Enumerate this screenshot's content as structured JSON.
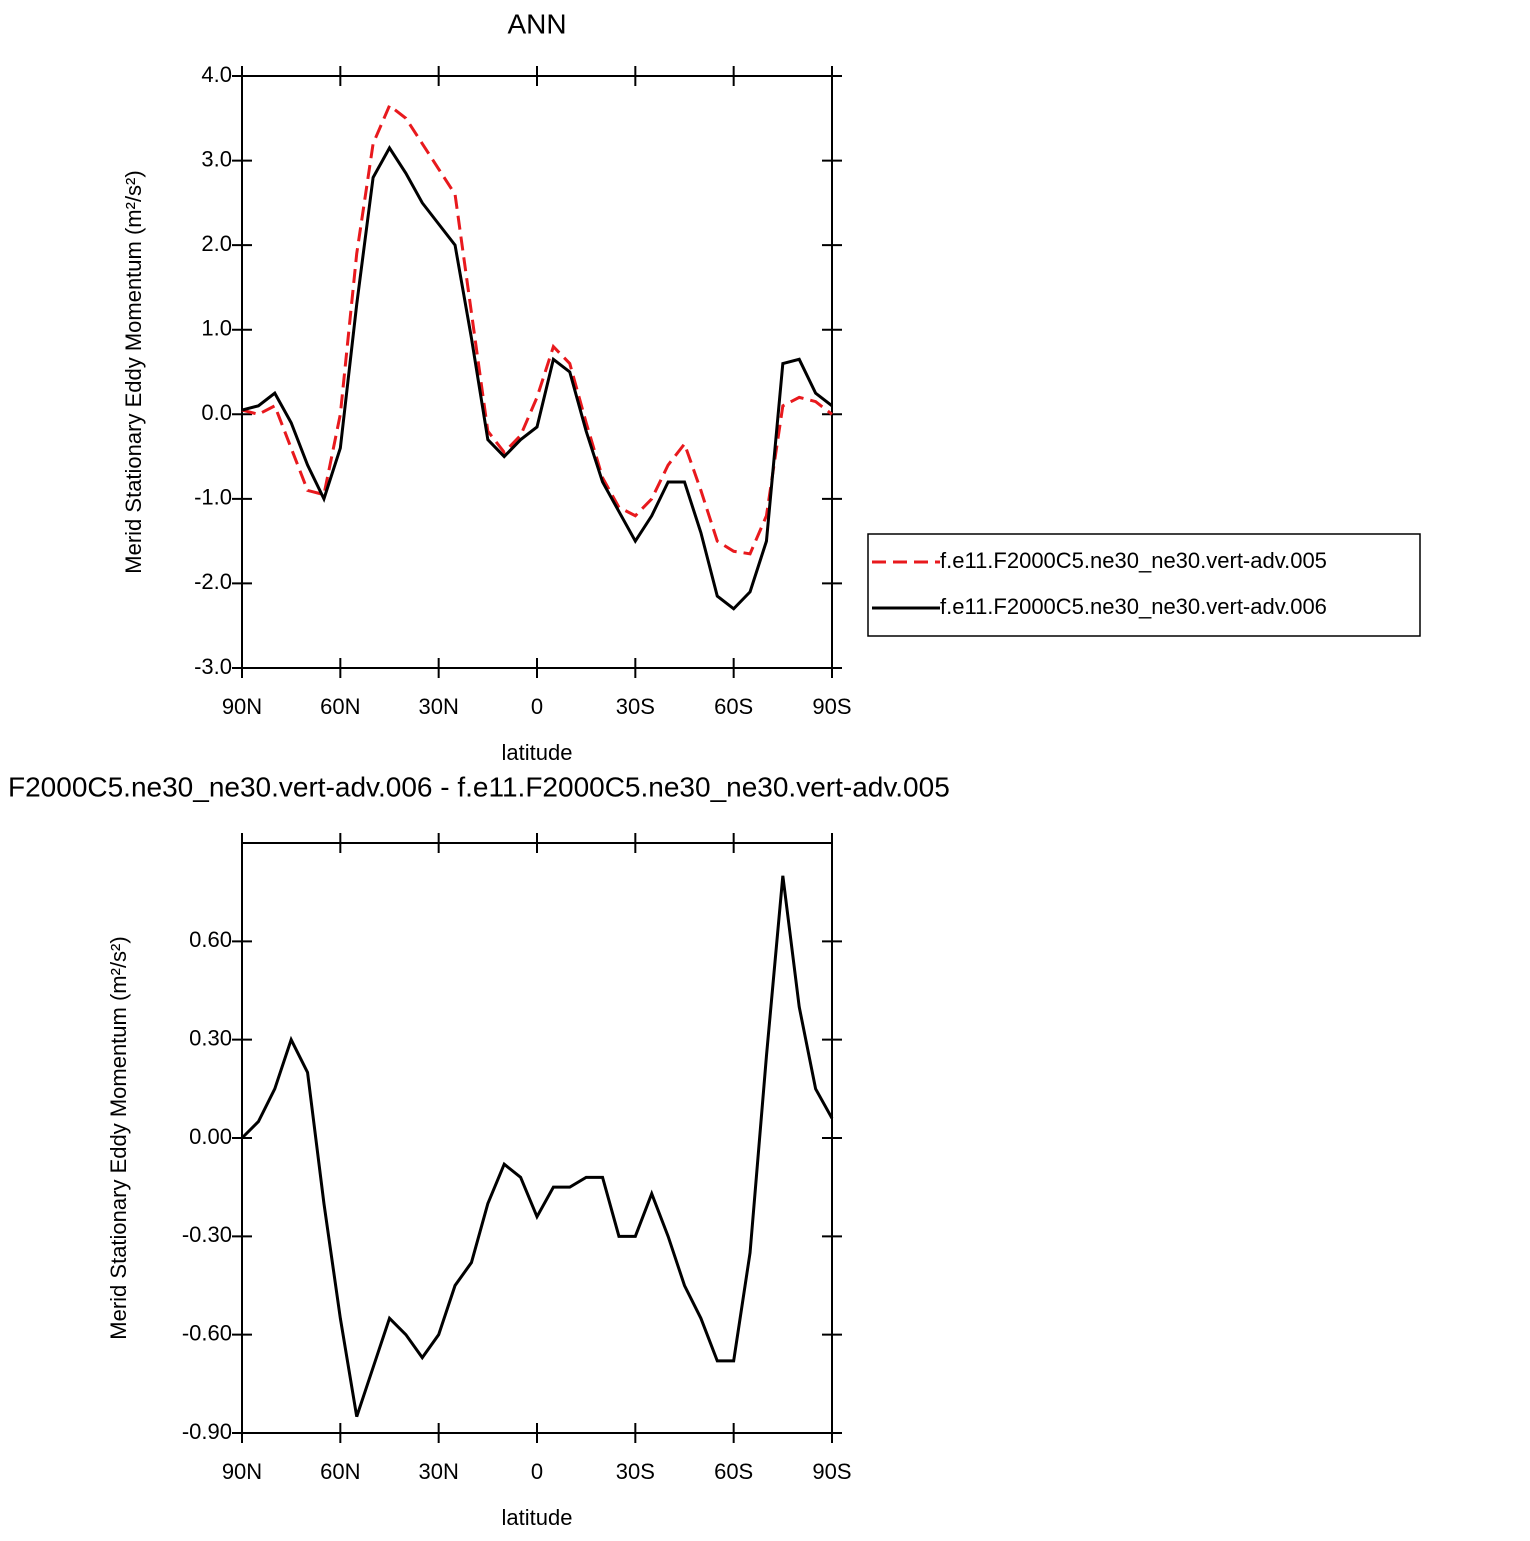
{
  "chart_data": [
    {
      "type": "line",
      "title": "ANN",
      "xlabel": "latitude",
      "ylabel": "Merid Stationary Eddy Momentum (m²/s²)",
      "x": [
        90,
        85,
        80,
        75,
        70,
        65,
        60,
        55,
        50,
        45,
        40,
        35,
        30,
        25,
        20,
        15,
        10,
        5,
        0,
        -5,
        -10,
        -15,
        -20,
        -25,
        -30,
        -35,
        -40,
        -45,
        -50,
        -55,
        -60,
        -65,
        -70,
        -75,
        -80,
        -85,
        -90
      ],
      "series": [
        {
          "name": "f.e11.F2000C5.ne30_ne30.vert-adv.005",
          "color": "#e8191d",
          "style": "dashed",
          "values": [
            0.05,
            0.0,
            0.1,
            -0.4,
            -0.9,
            -0.95,
            0.0,
            1.9,
            3.2,
            3.65,
            3.5,
            3.2,
            2.9,
            2.6,
            1.2,
            -0.2,
            -0.45,
            -0.25,
            0.2,
            0.8,
            0.6,
            -0.1,
            -0.75,
            -1.1,
            -1.2,
            -1.0,
            -0.6,
            -0.35,
            -0.9,
            -1.5,
            -1.62,
            -1.65,
            -1.2,
            0.1,
            0.2,
            0.15,
            0.0
          ]
        },
        {
          "name": "f.e11.F2000C5.ne30_ne30.vert-adv.006",
          "color": "#000000",
          "style": "solid",
          "values": [
            0.05,
            0.1,
            0.25,
            -0.1,
            -0.6,
            -1.0,
            -0.4,
            1.3,
            2.8,
            3.15,
            2.85,
            2.5,
            2.25,
            2.0,
            0.9,
            -0.3,
            -0.5,
            -0.3,
            -0.15,
            0.65,
            0.5,
            -0.2,
            -0.8,
            -1.15,
            -1.5,
            -1.2,
            -0.8,
            -0.8,
            -1.4,
            -2.15,
            -2.3,
            -2.1,
            -1.5,
            0.6,
            0.65,
            0.25,
            0.1
          ]
        }
      ],
      "xlim": [
        90,
        -90
      ],
      "xticks": [
        {
          "value": 90,
          "label": "90N"
        },
        {
          "value": 60,
          "label": "60N"
        },
        {
          "value": 30,
          "label": "30N"
        },
        0,
        {
          "value": -30,
          "label": "30S"
        },
        {
          "value": -60,
          "label": "60S"
        },
        {
          "value": -90,
          "label": "90S"
        }
      ],
      "ylim": [
        -3,
        4
      ],
      "yticks": [
        {
          "value": -3,
          "label": "-3.0"
        },
        {
          "value": -2,
          "label": "-2.0"
        },
        {
          "value": -1,
          "label": "-1.0"
        },
        {
          "value": 0,
          "label": "0.0"
        },
        {
          "value": 1,
          "label": "1.0"
        },
        {
          "value": 2,
          "label": "2.0"
        },
        {
          "value": 3,
          "label": "3.0"
        },
        {
          "value": 4,
          "label": "4.0"
        }
      ],
      "legend": "right"
    },
    {
      "type": "line",
      "title": "F2000C5.ne30_ne30.vert-adv.006 - f.e11.F2000C5.ne30_ne30.vert-adv.005",
      "xlabel": "latitude",
      "ylabel": "Merid Stationary Eddy Momentum (m²/s²)",
      "x": [
        90,
        85,
        80,
        75,
        70,
        65,
        60,
        55,
        50,
        45,
        40,
        35,
        30,
        25,
        20,
        15,
        10,
        5,
        0,
        -5,
        -10,
        -15,
        -20,
        -25,
        -30,
        -35,
        -40,
        -45,
        -50,
        -55,
        -60,
        -65,
        -70,
        -75,
        -80,
        -85,
        -90
      ],
      "series": [
        {
          "color": "#000000",
          "style": "solid",
          "values": [
            0.0,
            0.05,
            0.15,
            0.3,
            0.2,
            -0.2,
            -0.55,
            -0.85,
            -0.7,
            -0.55,
            -0.6,
            -0.67,
            -0.6,
            -0.45,
            -0.38,
            -0.2,
            -0.08,
            -0.12,
            -0.24,
            -0.15,
            -0.15,
            -0.12,
            -0.12,
            -0.3,
            -0.3,
            -0.17,
            -0.3,
            -0.45,
            -0.55,
            -0.68,
            -0.68,
            -0.35,
            0.25,
            0.8,
            0.4,
            0.15,
            0.06
          ]
        }
      ],
      "xlim": [
        90,
        -90
      ],
      "xticks": [
        {
          "value": 90,
          "label": "90N"
        },
        {
          "value": 60,
          "label": "60N"
        },
        {
          "value": 30,
          "label": "30N"
        },
        0,
        {
          "value": -30,
          "label": "30S"
        },
        {
          "value": -60,
          "label": "60S"
        },
        {
          "value": -90,
          "label": "90S"
        }
      ],
      "ylim": [
        -0.9,
        0.9
      ],
      "yticks": [
        {
          "value": -0.9,
          "label": "-0.90"
        },
        {
          "value": -0.6,
          "label": "-0.60"
        },
        {
          "value": -0.3,
          "label": "-0.30"
        },
        {
          "value": 0,
          "label": "0.00"
        },
        {
          "value": 0.3,
          "label": "0.30"
        },
        {
          "value": 0.6,
          "label": "0.60"
        }
      ]
    }
  ]
}
